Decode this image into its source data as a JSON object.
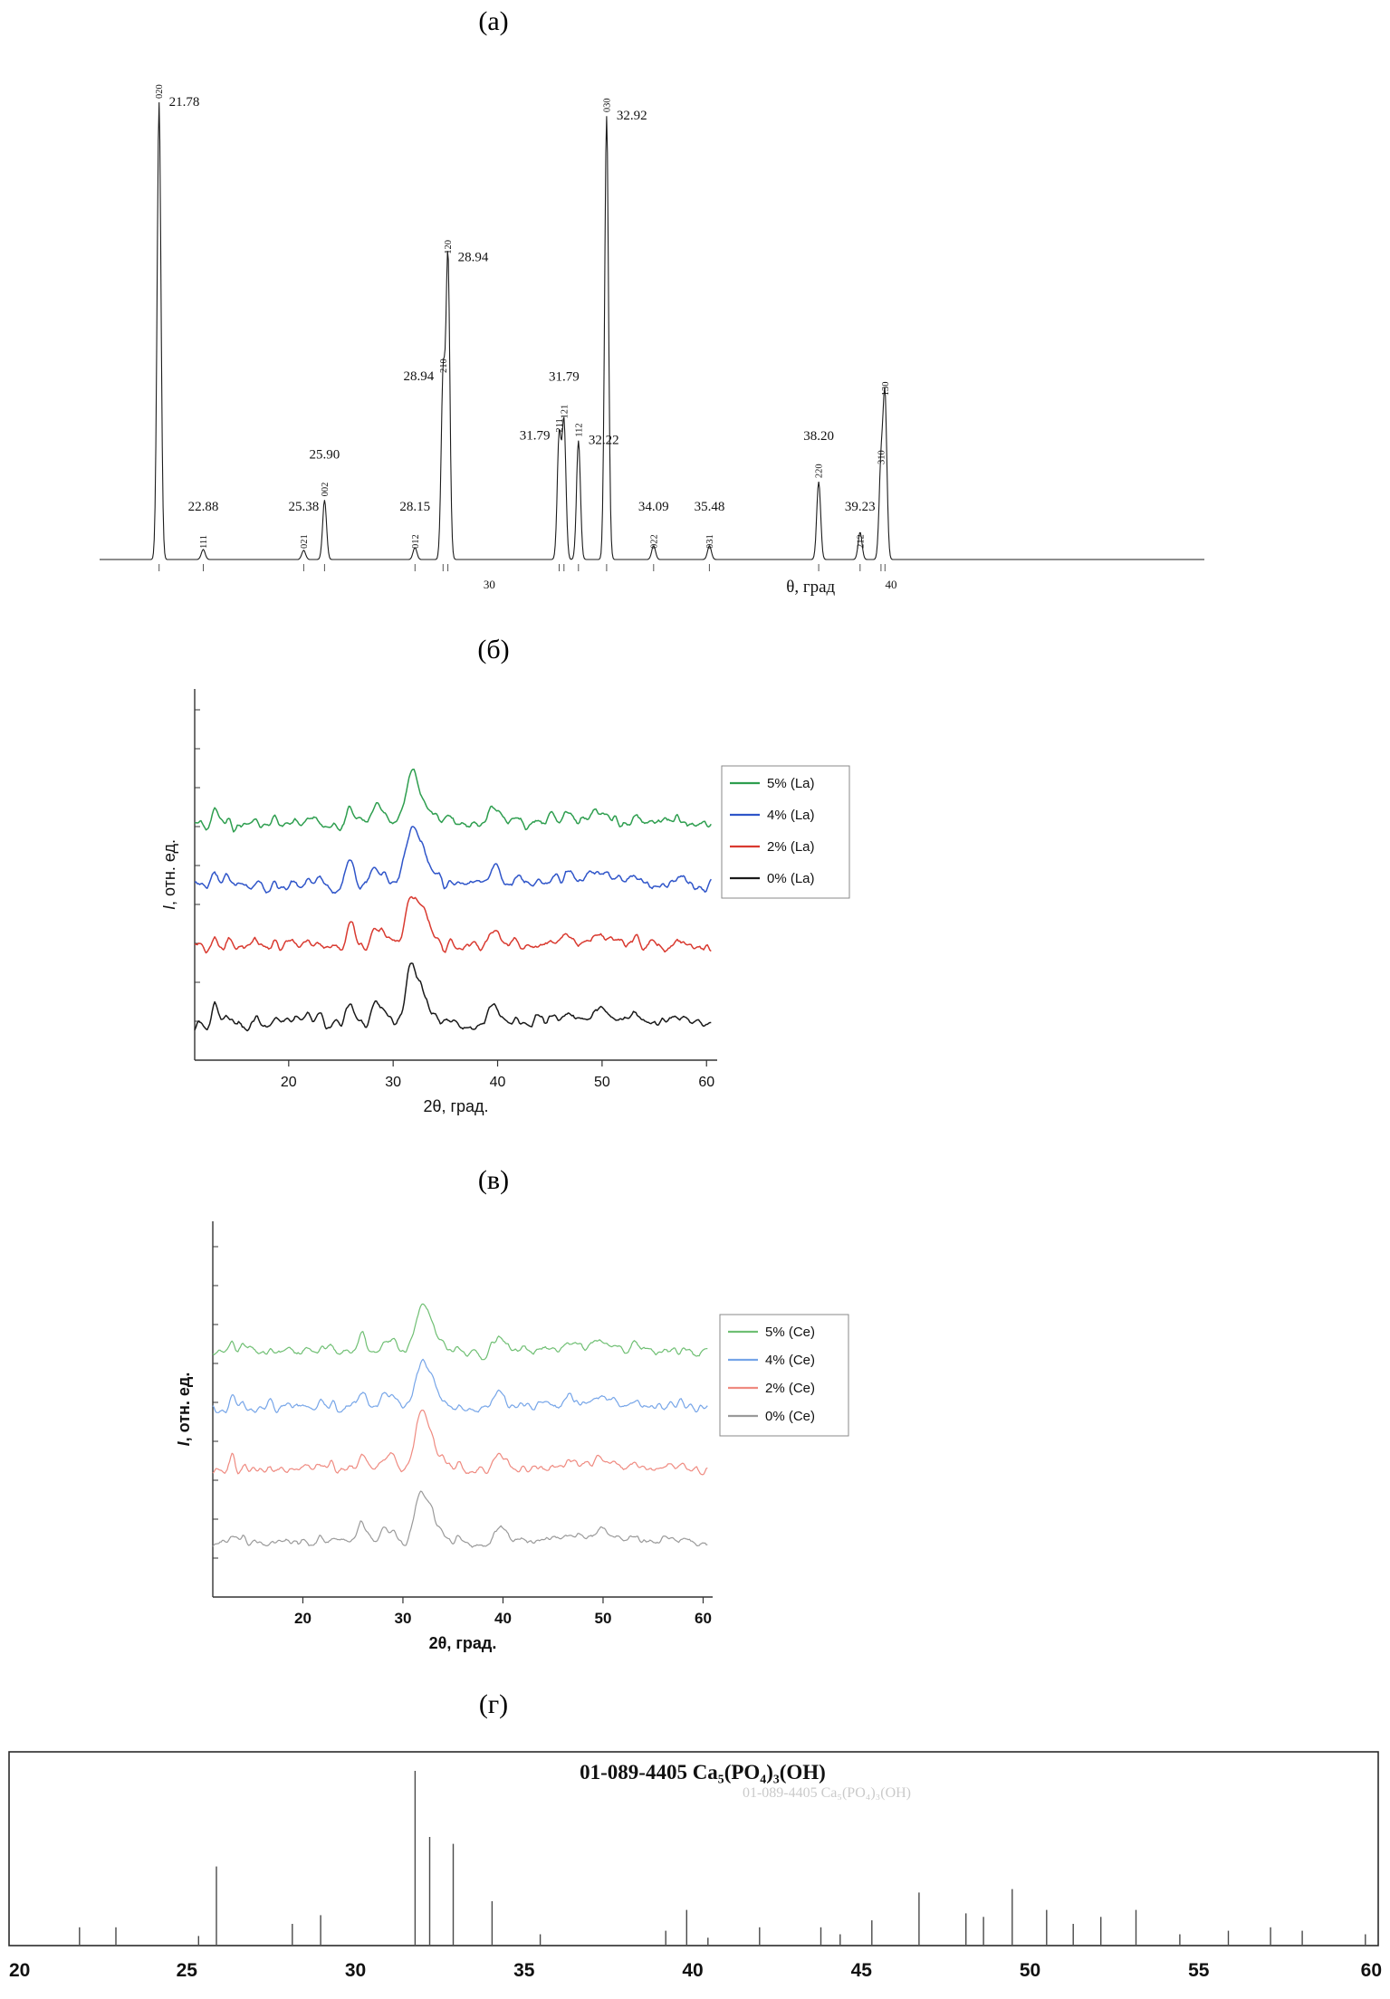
{
  "captions": {
    "a": "(а)",
    "b": "(б)",
    "v": "(в)",
    "g": "(г)"
  },
  "chart_data": [
    {
      "id": "a",
      "type": "line",
      "xlabel": "θ, град",
      "xlim": [
        20.3,
        47.8
      ],
      "x_ticks": [
        30,
        40
      ],
      "grid": false,
      "line_color": "#1c1c1c",
      "peaks": [
        {
          "two_theta": 21.78,
          "hkl": "020",
          "rel_intensity": 1.0,
          "value_label": "21.78",
          "label_pos": "right"
        },
        {
          "two_theta": 22.88,
          "hkl": "111",
          "rel_intensity": 0.022,
          "value_label": "22.88",
          "label_pos": "base"
        },
        {
          "two_theta": 25.38,
          "hkl": "021",
          "rel_intensity": 0.02,
          "value_label": "25.38",
          "label_pos": "base"
        },
        {
          "two_theta": 25.9,
          "hkl": "002",
          "rel_intensity": 0.13,
          "value_label": "25.90",
          "label_pos": "above"
        },
        {
          "two_theta": 28.15,
          "hkl": "012",
          "rel_intensity": 0.026,
          "value_label": "28.15",
          "label_pos": "base"
        },
        {
          "two_theta": 28.85,
          "hkl": "210",
          "rel_intensity": 0.4,
          "value_label": "28.94",
          "label_pos": "left"
        },
        {
          "two_theta": 28.97,
          "hkl": "120",
          "rel_intensity": 0.66,
          "value_label": "28.94",
          "label_pos": "right"
        },
        {
          "two_theta": 31.74,
          "hkl": "211",
          "rel_intensity": 0.27,
          "value_label": "31.79",
          "label_pos": "left"
        },
        {
          "two_theta": 31.86,
          "hkl": "121",
          "rel_intensity": 0.3,
          "value_label": "31.79",
          "label_pos": "above"
        },
        {
          "two_theta": 32.22,
          "hkl": "112",
          "rel_intensity": 0.26,
          "value_label": "32.22",
          "label_pos": "right"
        },
        {
          "two_theta": 32.92,
          "hkl": "030",
          "rel_intensity": 0.97,
          "value_label": "32.92",
          "label_pos": "right"
        },
        {
          "two_theta": 34.09,
          "hkl": "022",
          "rel_intensity": 0.03,
          "value_label": "34.09",
          "label_pos": "base"
        },
        {
          "two_theta": 35.48,
          "hkl": "031",
          "rel_intensity": 0.03,
          "value_label": "35.48",
          "label_pos": "base"
        },
        {
          "two_theta": 38.2,
          "hkl": "220",
          "rel_intensity": 0.17,
          "value_label": "38.20",
          "label_pos": "above"
        },
        {
          "two_theta": 39.23,
          "hkl": "212",
          "rel_intensity": 0.06,
          "value_label": "39.23",
          "label_pos": "base"
        },
        {
          "two_theta": 39.75,
          "hkl": "310",
          "rel_intensity": 0.2,
          "value_label": null,
          "label_pos": "none"
        },
        {
          "two_theta": 39.85,
          "hkl": "130",
          "rel_intensity": 0.35,
          "value_label": null,
          "label_pos": "none"
        }
      ]
    },
    {
      "id": "b",
      "type": "line",
      "xlabel": "2θ, град.",
      "ylabel": "I, отн. ед.",
      "xlim": [
        11,
        60.5
      ],
      "x_ticks": [
        20,
        30,
        40,
        50,
        60
      ],
      "grid": false,
      "legend_position": "right",
      "noise_seed": 3,
      "series": [
        {
          "name": "5% (La)",
          "color": "#2e9e4f"
        },
        {
          "name": "4% (La)",
          "color": "#2f55c9"
        },
        {
          "name": "2% (La)",
          "color": "#d93a30"
        },
        {
          "name": "0% (La)",
          "color": "#1a1a1a"
        }
      ],
      "peaks": [
        {
          "x": 12.9,
          "h": 0.26,
          "w": 0.28
        },
        {
          "x": 14.1,
          "h": 0.1,
          "w": 0.22
        },
        {
          "x": 16.8,
          "h": 0.1,
          "w": 0.28
        },
        {
          "x": 18.6,
          "h": 0.08,
          "w": 0.25
        },
        {
          "x": 20.3,
          "h": 0.06,
          "w": 0.25
        },
        {
          "x": 21.8,
          "h": 0.12,
          "w": 0.3
        },
        {
          "x": 22.9,
          "h": 0.11,
          "w": 0.3
        },
        {
          "x": 25.9,
          "h": 0.36,
          "w": 0.38
        },
        {
          "x": 28.2,
          "h": 0.27,
          "w": 0.42
        },
        {
          "x": 29.1,
          "h": 0.21,
          "w": 0.38
        },
        {
          "x": 31.8,
          "h": 1.0,
          "w": 0.6
        },
        {
          "x": 32.95,
          "h": 0.46,
          "w": 0.5
        },
        {
          "x": 34.1,
          "h": 0.17,
          "w": 0.35
        },
        {
          "x": 35.5,
          "h": 0.09,
          "w": 0.3
        },
        {
          "x": 39.3,
          "h": 0.12,
          "w": 0.4
        },
        {
          "x": 39.9,
          "h": 0.27,
          "w": 0.5
        },
        {
          "x": 42.0,
          "h": 0.09,
          "w": 0.4
        },
        {
          "x": 43.9,
          "h": 0.1,
          "w": 0.45
        },
        {
          "x": 45.3,
          "h": 0.11,
          "w": 0.4
        },
        {
          "x": 46.7,
          "h": 0.24,
          "w": 0.55
        },
        {
          "x": 48.1,
          "h": 0.12,
          "w": 0.4
        },
        {
          "x": 49.5,
          "h": 0.26,
          "w": 0.55
        },
        {
          "x": 50.5,
          "h": 0.13,
          "w": 0.4
        },
        {
          "x": 51.3,
          "h": 0.08,
          "w": 0.4
        },
        {
          "x": 53.2,
          "h": 0.15,
          "w": 0.5
        },
        {
          "x": 55.9,
          "h": 0.07,
          "w": 0.4
        },
        {
          "x": 57.2,
          "h": 0.09,
          "w": 0.45
        },
        {
          "x": 58.1,
          "h": 0.07,
          "w": 0.4
        }
      ]
    },
    {
      "id": "v",
      "type": "line",
      "xlabel": "2θ, град.",
      "ylabel": "I, отн. ед.",
      "xlim": [
        11,
        60.5
      ],
      "x_ticks": [
        20,
        30,
        40,
        50,
        60
      ],
      "grid": false,
      "legend_position": "right",
      "noise_seed": 8,
      "series": [
        {
          "name": "5% (Ce)",
          "color": "#6fbf73"
        },
        {
          "name": "4% (Ce)",
          "color": "#76a5e8"
        },
        {
          "name": "2% (Ce)",
          "color": "#ef8a80"
        },
        {
          "name": "0% (Ce)",
          "color": "#9a9a9a"
        }
      ],
      "peaks": [
        {
          "x": 12.9,
          "h": 0.26,
          "w": 0.28
        },
        {
          "x": 14.1,
          "h": 0.1,
          "w": 0.22
        },
        {
          "x": 16.8,
          "h": 0.1,
          "w": 0.28
        },
        {
          "x": 18.6,
          "h": 0.08,
          "w": 0.25
        },
        {
          "x": 20.3,
          "h": 0.06,
          "w": 0.25
        },
        {
          "x": 21.8,
          "h": 0.12,
          "w": 0.3
        },
        {
          "x": 22.9,
          "h": 0.11,
          "w": 0.3
        },
        {
          "x": 25.9,
          "h": 0.36,
          "w": 0.38
        },
        {
          "x": 28.2,
          "h": 0.27,
          "w": 0.42
        },
        {
          "x": 29.1,
          "h": 0.21,
          "w": 0.38
        },
        {
          "x": 31.8,
          "h": 1.0,
          "w": 0.6
        },
        {
          "x": 32.95,
          "h": 0.46,
          "w": 0.5
        },
        {
          "x": 34.1,
          "h": 0.17,
          "w": 0.35
        },
        {
          "x": 35.5,
          "h": 0.09,
          "w": 0.3
        },
        {
          "x": 39.3,
          "h": 0.12,
          "w": 0.4
        },
        {
          "x": 39.9,
          "h": 0.27,
          "w": 0.5
        },
        {
          "x": 42.0,
          "h": 0.09,
          "w": 0.4
        },
        {
          "x": 43.9,
          "h": 0.1,
          "w": 0.45
        },
        {
          "x": 45.3,
          "h": 0.11,
          "w": 0.4
        },
        {
          "x": 46.7,
          "h": 0.24,
          "w": 0.55
        },
        {
          "x": 48.1,
          "h": 0.12,
          "w": 0.4
        },
        {
          "x": 49.5,
          "h": 0.26,
          "w": 0.55
        },
        {
          "x": 50.5,
          "h": 0.13,
          "w": 0.4
        },
        {
          "x": 51.3,
          "h": 0.08,
          "w": 0.4
        },
        {
          "x": 53.2,
          "h": 0.15,
          "w": 0.5
        },
        {
          "x": 55.9,
          "h": 0.07,
          "w": 0.4
        },
        {
          "x": 57.2,
          "h": 0.09,
          "w": 0.45
        },
        {
          "x": 58.1,
          "h": 0.07,
          "w": 0.4
        }
      ]
    },
    {
      "id": "g",
      "type": "stick",
      "title": "01-089-4405 Ca₅(PO₄)₃(OH)",
      "xlim": [
        20,
        60
      ],
      "x_ticks": [
        20,
        25,
        30,
        35,
        40,
        45,
        50,
        55,
        60
      ],
      "grid": false,
      "stick_color": "#4a4a4a",
      "sticks": [
        [
          21.82,
          10
        ],
        [
          22.9,
          10
        ],
        [
          25.35,
          5
        ],
        [
          25.88,
          45
        ],
        [
          28.13,
          12
        ],
        [
          28.97,
          17
        ],
        [
          31.77,
          100
        ],
        [
          32.2,
          62
        ],
        [
          32.9,
          58
        ],
        [
          34.05,
          25
        ],
        [
          35.48,
          6
        ],
        [
          39.2,
          8
        ],
        [
          39.82,
          20
        ],
        [
          40.45,
          4
        ],
        [
          41.98,
          10
        ],
        [
          43.8,
          10
        ],
        [
          44.37,
          6
        ],
        [
          45.31,
          14
        ],
        [
          46.71,
          30
        ],
        [
          48.1,
          18
        ],
        [
          48.62,
          16
        ],
        [
          49.47,
          32
        ],
        [
          50.49,
          20
        ],
        [
          51.28,
          12
        ],
        [
          52.1,
          16
        ],
        [
          53.14,
          20
        ],
        [
          54.44,
          6
        ],
        [
          55.88,
          8
        ],
        [
          57.13,
          10
        ],
        [
          58.07,
          8
        ],
        [
          59.94,
          6
        ]
      ]
    }
  ]
}
